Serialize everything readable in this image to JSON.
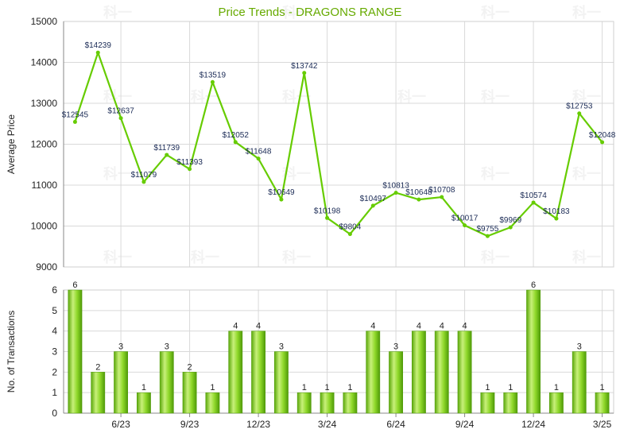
{
  "chart_data": [
    {
      "type": "line",
      "title": "Price Trends - DRAGONS RANGE",
      "ylabel": "Average Price",
      "ylim": [
        9000,
        15000
      ],
      "yticks": [
        9000,
        10000,
        11000,
        12000,
        13000,
        14000,
        15000
      ],
      "grid": true,
      "series": [
        {
          "values": [
            12545,
            14239,
            12637,
            11079,
            11739,
            11393,
            13519,
            12052,
            11648,
            10649,
            13742,
            10198,
            9804,
            10497,
            10813,
            10648,
            10708,
            10017,
            9755,
            9969,
            10574,
            10183,
            12753,
            12048
          ],
          "labels": [
            "$12545",
            "$14239",
            "$12637",
            "$11079",
            "$11739",
            "$11393",
            "$13519",
            "$12052",
            "$11648",
            "$10649",
            "$13742",
            "$10198",
            "$9804",
            "$10497",
            "$10813",
            "$10648",
            "$10708",
            "$10017",
            "$9755",
            "$9969",
            "$10574",
            "$10183",
            "$12753",
            "$12048"
          ],
          "color": "#66cc00"
        }
      ]
    },
    {
      "type": "bar",
      "ylabel": "No. of Transactions",
      "ylim": [
        0,
        6
      ],
      "yticks": [
        0,
        1,
        2,
        3,
        4,
        5,
        6
      ],
      "grid": true,
      "values": [
        6,
        2,
        3,
        1,
        3,
        2,
        1,
        4,
        4,
        3,
        1,
        1,
        1,
        4,
        3,
        4,
        4,
        4,
        1,
        1,
        6,
        1,
        3,
        1
      ],
      "x_ticks": [
        {
          "index": 2,
          "label": "6/23"
        },
        {
          "index": 5,
          "label": "9/23"
        },
        {
          "index": 8,
          "label": "12/23"
        },
        {
          "index": 11,
          "label": "3/24"
        },
        {
          "index": 14,
          "label": "6/24"
        },
        {
          "index": 17,
          "label": "9/24"
        },
        {
          "index": 20,
          "label": "12/24"
        },
        {
          "index": 23,
          "label": "3/25"
        }
      ],
      "color": "#7ccf1a"
    }
  ],
  "colors": {
    "title": "#66aa00",
    "grid": "#d9d9d9",
    "axis": "#888888",
    "line": "#66cc00",
    "bar_light": "#c8f07a",
    "bar_dark": "#5aa80a"
  },
  "watermark": "科一"
}
